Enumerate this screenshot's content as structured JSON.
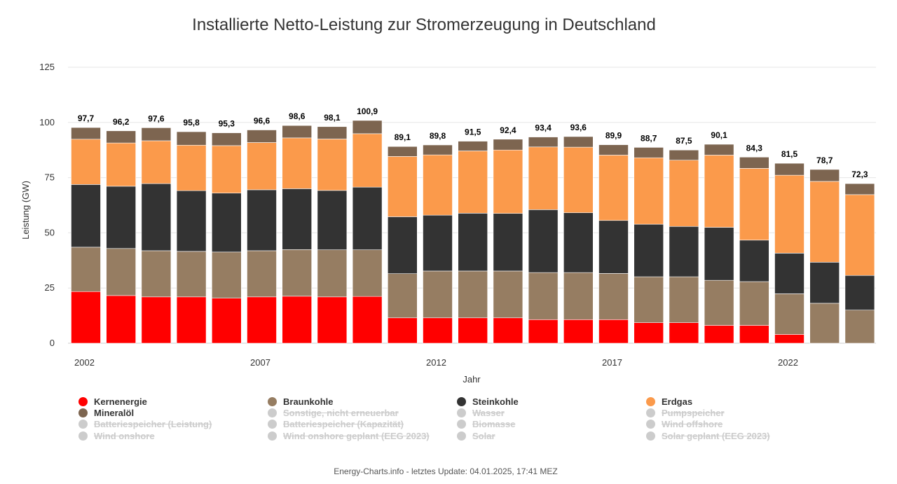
{
  "chart_data": {
    "type": "bar",
    "stacked": true,
    "title": "Installierte Netto-Leistung zur Stromerzeugung in Deutschland",
    "xlabel": "Jahr",
    "ylabel": "Leistung (GW)",
    "ylim": [
      0,
      125
    ],
    "yticks": [
      "0",
      "25",
      "50",
      "75",
      "100",
      "125"
    ],
    "ytick_values": [
      0,
      25,
      50,
      75,
      100,
      125
    ],
    "categories": [
      2002,
      2003,
      2004,
      2005,
      2006,
      2007,
      2008,
      2009,
      2010,
      2011,
      2012,
      2013,
      2014,
      2015,
      2016,
      2017,
      2018,
      2019,
      2020,
      2021,
      2022,
      2023,
      2024
    ],
    "xtick_labels": [
      "2002",
      "2007",
      "2012",
      "2017",
      "2022"
    ],
    "totals": [
      97.7,
      96.2,
      97.6,
      95.8,
      95.3,
      96.6,
      98.6,
      98.1,
      100.9,
      89.1,
      89.8,
      91.5,
      92.4,
      93.4,
      93.6,
      89.9,
      88.7,
      87.5,
      90.1,
      84.3,
      81.5,
      78.7,
      72.3
    ],
    "total_labels": [
      "97,7",
      "96,2",
      "97,6",
      "95,8",
      "95,3",
      "96,6",
      "98,6",
      "98,1",
      "100,9",
      "89,1",
      "89,8",
      "91,5",
      "92,4",
      "93,4",
      "93,6",
      "89,9",
      "88,7",
      "87,5",
      "90,1",
      "84,3",
      "81,5",
      "78,7",
      "72,3"
    ],
    "series": [
      {
        "name": "Kernenergie",
        "color": "#ff0000",
        "values": [
          23.4,
          21.6,
          21.0,
          21.0,
          20.4,
          21.0,
          21.3,
          21.0,
          21.2,
          11.5,
          11.5,
          11.5,
          11.5,
          10.7,
          10.7,
          10.7,
          9.3,
          9.3,
          8.1,
          8.1,
          4.0,
          0,
          0
        ]
      },
      {
        "name": "Braunkohle",
        "color": "#967d62",
        "values": [
          20.1,
          21.3,
          20.9,
          20.6,
          20.9,
          20.9,
          21.1,
          21.3,
          21.1,
          20.0,
          21.2,
          21.2,
          21.2,
          21.3,
          21.3,
          20.9,
          20.8,
          20.8,
          20.4,
          19.8,
          18.4,
          18.1,
          15.0
        ]
      },
      {
        "name": "Steinkohle",
        "color": "#333333",
        "values": [
          28.4,
          28.2,
          30.4,
          27.5,
          26.7,
          27.6,
          27.6,
          26.9,
          28.4,
          25.8,
          25.3,
          26.2,
          26.1,
          28.5,
          27.1,
          24.0,
          23.8,
          22.8,
          24.0,
          18.8,
          18.4,
          18.6,
          15.7
        ]
      },
      {
        "name": "Erdgas",
        "color": "#fb9a4b",
        "values": [
          20.5,
          19.6,
          19.4,
          20.6,
          21.5,
          21.4,
          23.0,
          23.3,
          24.2,
          27.3,
          27.3,
          28.2,
          28.7,
          28.4,
          29.7,
          29.6,
          30.1,
          30.0,
          32.7,
          32.5,
          35.3,
          36.6,
          36.6
        ]
      },
      {
        "name": "Mineralöl",
        "color": "#7d6550",
        "values": [
          5.3,
          5.5,
          5.9,
          6.1,
          5.8,
          5.7,
          5.6,
          5.6,
          6.0,
          4.5,
          4.5,
          4.4,
          4.9,
          4.5,
          4.8,
          4.7,
          4.7,
          4.6,
          4.9,
          5.1,
          5.4,
          5.4,
          5.0
        ]
      }
    ]
  },
  "legend": {
    "items": [
      {
        "label": "Kernenergie",
        "color": "#ff0000",
        "active": true
      },
      {
        "label": "Braunkohle",
        "color": "#967d62",
        "active": true
      },
      {
        "label": "Steinkohle",
        "color": "#333333",
        "active": true
      },
      {
        "label": "Erdgas",
        "color": "#fb9a4b",
        "active": true
      },
      {
        "label": "Mineralöl",
        "color": "#7d6550",
        "active": true
      },
      {
        "label": "Sonstige, nicht erneuerbar",
        "color": "#cccccc",
        "active": false
      },
      {
        "label": "Wasser",
        "color": "#cccccc",
        "active": false
      },
      {
        "label": "Pumpspeicher",
        "color": "#cccccc",
        "active": false
      },
      {
        "label": "Batteriespeicher (Leistung)",
        "color": "#cccccc",
        "active": false
      },
      {
        "label": "Batteriespeicher (Kapazität)",
        "color": "#cccccc",
        "active": false
      },
      {
        "label": "Biomasse",
        "color": "#cccccc",
        "active": false
      },
      {
        "label": "Wind offshore",
        "color": "#cccccc",
        "active": false
      },
      {
        "label": "Wind onshore",
        "color": "#cccccc",
        "active": false
      },
      {
        "label": "Wind onshore geplant (EEG 2023)",
        "color": "#cccccc",
        "active": false
      },
      {
        "label": "Solar",
        "color": "#cccccc",
        "active": false
      },
      {
        "label": "Solar geplant (EEG 2023)",
        "color": "#cccccc",
        "active": false
      }
    ]
  },
  "footer": {
    "credit": "Energy-Charts.info - letztes Update: 04.01.2025, 17:41 MEZ"
  }
}
